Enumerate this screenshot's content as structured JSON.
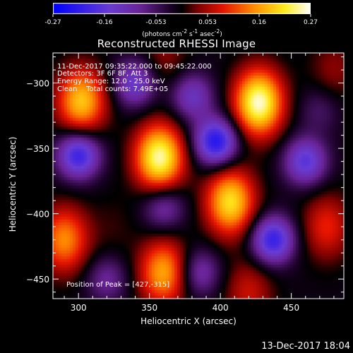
{
  "colorbar": {
    "min": -0.27,
    "max": 0.27,
    "ticks": [
      "-0.27",
      "-0.16",
      "-0.053",
      "0.053",
      "0.16",
      "0.27"
    ],
    "units_main": "(photons cm",
    "units_sup1": "-2",
    "units_s": " s",
    "units_sup2": "-1",
    "units_asec": " asec",
    "units_sup3": "-2",
    "units_end": ")"
  },
  "chart_data": {
    "type": "heatmap",
    "title": "Reconstructed RHESSI Image",
    "xlabel": "Heliocentric X (arcsec)",
    "ylabel": "Heliocentric Y (arcsec)",
    "xlim": [
      282,
      487
    ],
    "ylim": [
      -465,
      -277
    ],
    "xticks": [
      300,
      350,
      400,
      450
    ],
    "yticks": [
      -300,
      -350,
      -400,
      -450
    ],
    "peaks": [
      {
        "x": 427,
        "y": -315,
        "value": 0.27
      },
      {
        "x": 357,
        "y": -357,
        "value": 0.26
      },
      {
        "x": 407,
        "y": -391,
        "value": 0.22
      },
      {
        "x": 302,
        "y": -314,
        "value": 0.2
      },
      {
        "x": 290,
        "y": -420,
        "value": 0.16
      },
      {
        "x": 360,
        "y": -445,
        "value": 0.18
      },
      {
        "x": 475,
        "y": -410,
        "value": 0.1
      },
      {
        "x": 420,
        "y": -460,
        "value": 0.08
      },
      {
        "x": 360,
        "y": -282,
        "value": 0.05
      },
      {
        "x": 480,
        "y": -290,
        "value": 0.05
      },
      {
        "x": 325,
        "y": -410,
        "value": 0.02
      }
    ],
    "valleys": [
      {
        "x": 300,
        "y": -355,
        "value": -0.2
      },
      {
        "x": 397,
        "y": -345,
        "value": -0.22
      },
      {
        "x": 437,
        "y": -420,
        "value": -0.2
      },
      {
        "x": 460,
        "y": -360,
        "value": -0.16
      },
      {
        "x": 340,
        "y": -300,
        "value": -0.14
      },
      {
        "x": 380,
        "y": -310,
        "value": -0.12
      },
      {
        "x": 360,
        "y": -395,
        "value": -0.1
      },
      {
        "x": 385,
        "y": -445,
        "value": -0.1
      },
      {
        "x": 320,
        "y": -450,
        "value": -0.08
      },
      {
        "x": 470,
        "y": -320,
        "value": -0.05
      }
    ]
  },
  "annotations": {
    "line1": "11-Dec-2017 09:35:22.000 to 09:45:22.000",
    "line2": "Detectors: 3F 6F 8F, Att 3",
    "line3": "Energy Range: 12.0 - 25.0 keV",
    "line4": "Clean    Total counts: 7.49E+05",
    "peak": "Position of Peak = [427,-315]"
  },
  "footer": "13-Dec-2017 18:04"
}
